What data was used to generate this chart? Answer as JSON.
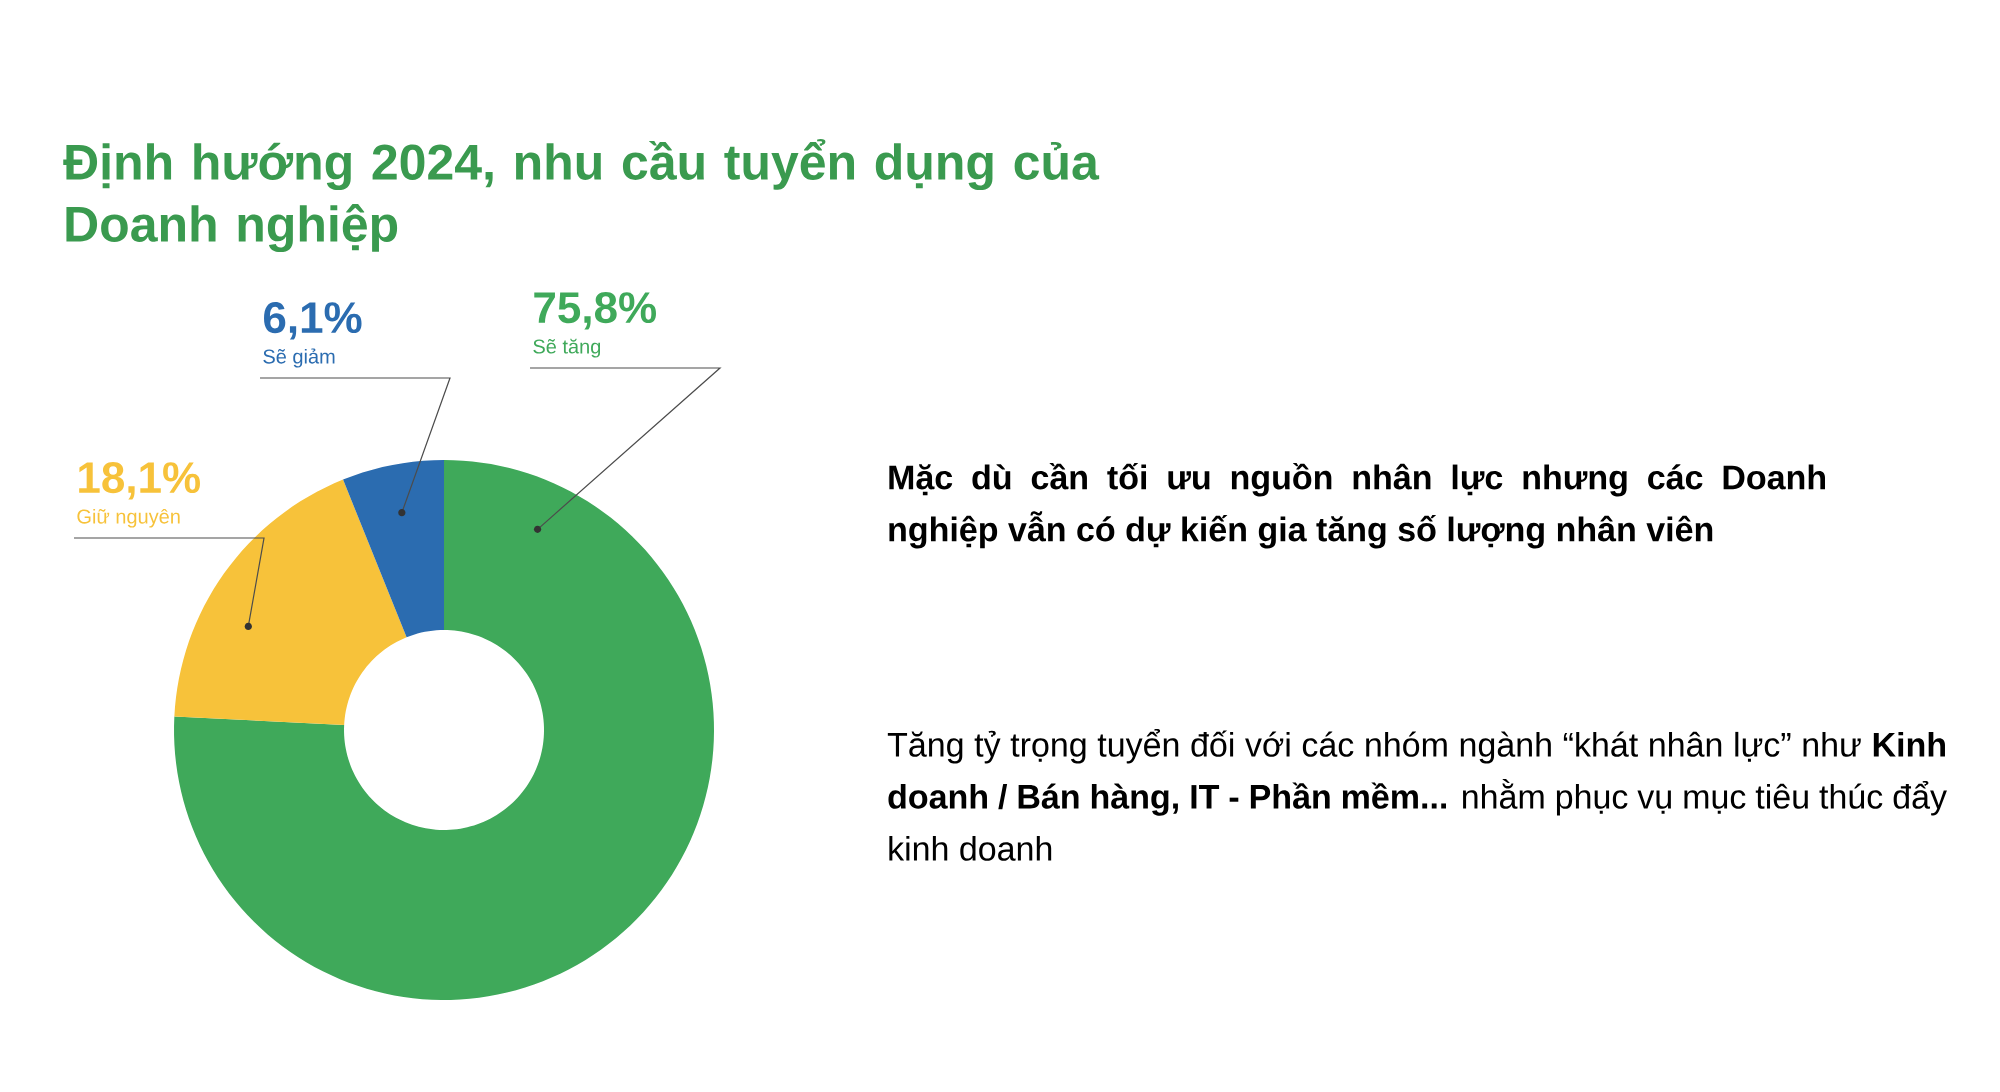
{
  "chart_data": {
    "type": "donut",
    "title": "Định hướng 2024, nhu cầu tuyển dụng của Doanh nghiệp",
    "categories": [
      "Sẽ tăng",
      "Giữ nguyên",
      "Sẽ giảm"
    ],
    "values": [
      75.8,
      18.1,
      6.1
    ],
    "value_labels": [
      "75,8%",
      "18,1%",
      "6,1%"
    ],
    "colors": [
      "#3fa95a",
      "#f7c23a",
      "#2b6cb0"
    ],
    "annotations": [
      "**Mặc dù cần tối ưu nguồn nhân lực nhưng các Doanh nghiệp vẫn có dự kiến gia tăng số lượng nhân viên**",
      "Tăng tỷ trọng tuyển đối với các nhóm ngành “khát nhân lực” như **Kinh doanh / Bán hàng, IT - Phần mềm...** nhằm phục vụ mục tiêu thúc đẩy kinh doanh"
    ]
  }
}
